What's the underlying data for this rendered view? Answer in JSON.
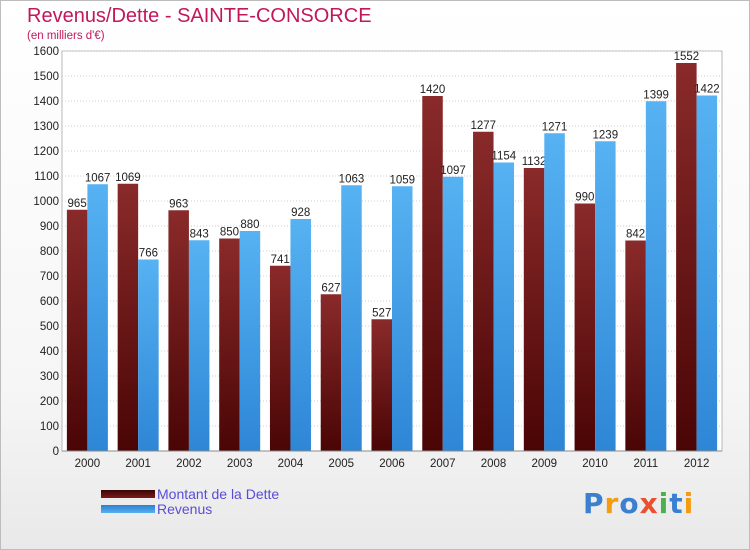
{
  "header": {
    "title": "Revenus/Dette - SAINTE-CONSORCE",
    "subtitle": "(en milliers d'€)"
  },
  "legend": {
    "items": [
      {
        "label": "Montant de la Dette",
        "color": "#7b1a1a"
      },
      {
        "label": "Revenus",
        "color": "#3d9be9"
      }
    ]
  },
  "logo": {
    "text": "Proxiti",
    "letters": [
      {
        "char": "P",
        "color": "#3a7fd0"
      },
      {
        "char": "r",
        "color": "#f39c12"
      },
      {
        "char": "o",
        "color": "#3a7fd0"
      },
      {
        "char": "x",
        "color": "#e8502f"
      },
      {
        "char": "i",
        "color": "#4cb04c"
      },
      {
        "char": "t",
        "color": "#3a7fd0"
      },
      {
        "char": "i",
        "color": "#f39c12"
      }
    ]
  },
  "chart_data": {
    "type": "bar",
    "title": "Revenus/Dette - SAINTE-CONSORCE",
    "subtitle": "(en milliers d'€)",
    "categories": [
      "2000",
      "2001",
      "2002",
      "2003",
      "2004",
      "2005",
      "2006",
      "2007",
      "2008",
      "2009",
      "2010",
      "2011",
      "2012"
    ],
    "series": [
      {
        "name": "Montant de la Dette",
        "color": "#7b1a1a",
        "values": [
          965,
          1069,
          963,
          850,
          741,
          627,
          527,
          1420,
          1277,
          1132,
          990,
          842,
          1552
        ]
      },
      {
        "name": "Revenus",
        "color": "#3d9be9",
        "values": [
          1067,
          766,
          843,
          880,
          928,
          1063,
          1059,
          1097,
          1154,
          1271,
          1239,
          1399,
          1422
        ]
      }
    ],
    "ylim": [
      0,
      1600
    ],
    "yticks": [
      0,
      100,
      200,
      300,
      400,
      500,
      600,
      700,
      800,
      900,
      1000,
      1100,
      1200,
      1300,
      1400,
      1500,
      1600
    ],
    "grid": true,
    "legend": "bottom-left"
  }
}
